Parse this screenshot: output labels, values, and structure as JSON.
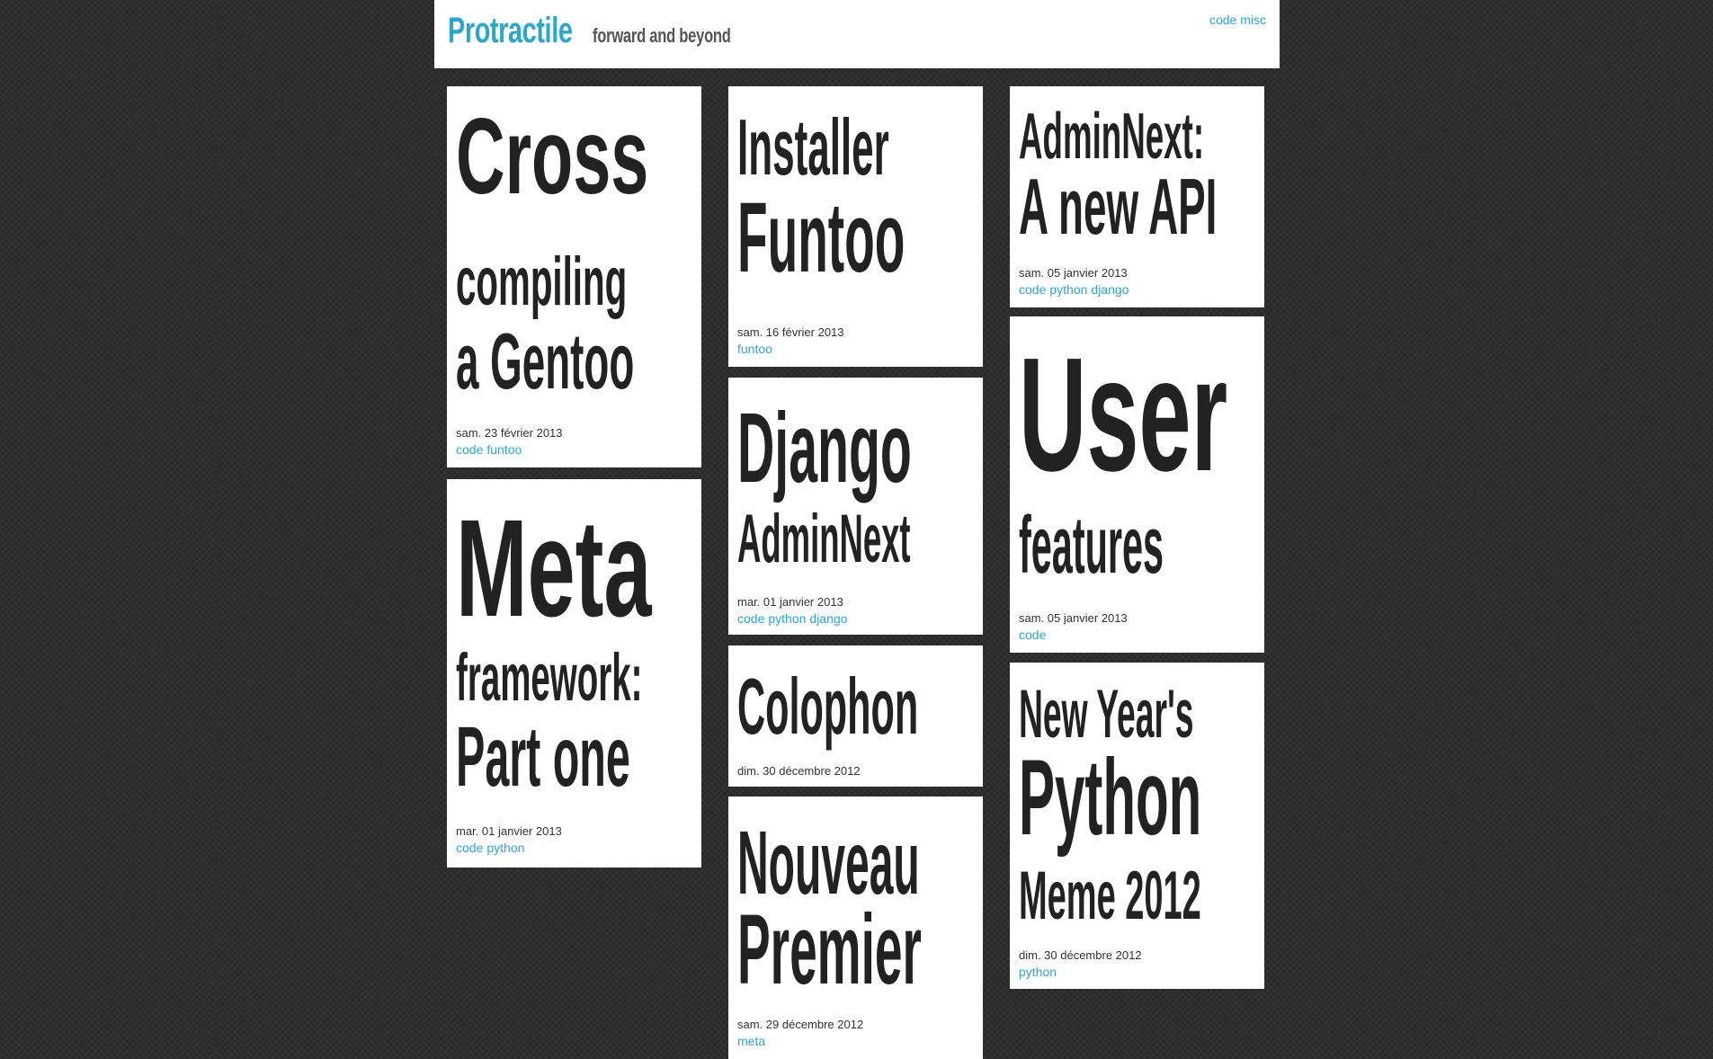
{
  "site": {
    "title": "Protractile",
    "tagline": "forward and beyond",
    "nav": [
      {
        "label": "code"
      },
      {
        "label": "misc"
      }
    ]
  },
  "posts": [
    {
      "title_lines": [
        "Cross",
        "compiling",
        "a Gentoo"
      ],
      "date": "sam. 23 février 2013",
      "tags": [
        "code",
        "funtoo"
      ]
    },
    {
      "title_lines": [
        "Meta",
        "framework:",
        "Part one"
      ],
      "date": "mar. 01 janvier 2013",
      "tags": [
        "code",
        "python"
      ]
    },
    {
      "title_lines": [
        "Installer",
        "Funtoo"
      ],
      "date": "sam. 16 février 2013",
      "tags": [
        "funtoo"
      ]
    },
    {
      "title_lines": [
        "Django",
        "AdminNext"
      ],
      "date": "mar. 01 janvier 2013",
      "tags": [
        "code",
        "python",
        "django"
      ]
    },
    {
      "title_lines": [
        "Colophon"
      ],
      "date": "dim. 30 décembre 2012",
      "tags": []
    },
    {
      "title_lines": [
        "Nouveau",
        "Premier"
      ],
      "date": "sam. 29 décembre 2012",
      "tags": [
        "meta"
      ]
    },
    {
      "title_lines": [
        "AdminNext:",
        "A new API"
      ],
      "date": "sam. 05 janvier 2013",
      "tags": [
        "code",
        "python",
        "django"
      ]
    },
    {
      "title_lines": [
        "User",
        "features"
      ],
      "date": "sam. 05 janvier 2013",
      "tags": [
        "code"
      ]
    },
    {
      "title_lines": [
        "New Year's",
        "Python",
        "Meme 2012"
      ],
      "date": "dim. 30 décembre 2012",
      "tags": [
        "python"
      ]
    }
  ]
}
